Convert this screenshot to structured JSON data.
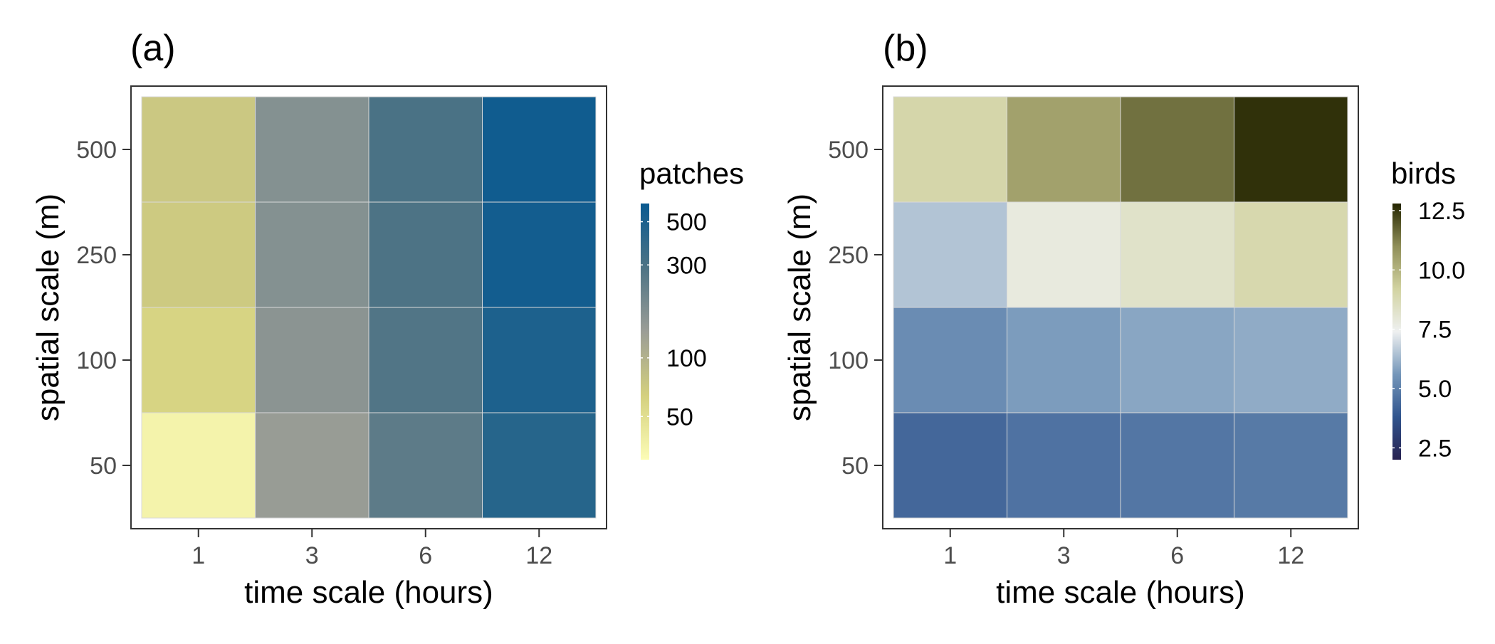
{
  "chart_data": [
    {
      "type": "heatmap",
      "panel_label": "(a)",
      "xlabel": "time scale (hours)",
      "ylabel": "spatial scale (m)",
      "x_categories": [
        "1",
        "3",
        "6",
        "12"
      ],
      "y_categories": [
        "50",
        "100",
        "250",
        "500"
      ],
      "values": [
        [
          35,
          140,
          250,
          450
        ],
        [
          60,
          160,
          280,
          500
        ],
        [
          70,
          170,
          290,
          560
        ],
        [
          72,
          170,
          300,
          580
        ]
      ],
      "legend": {
        "title": "patches",
        "scale": "log",
        "range": [
          30,
          620
        ],
        "ticks": [
          50,
          100,
          300,
          500
        ],
        "tick_labels": [
          "50",
          "100",
          "300",
          "500"
        ],
        "colors": [
          "#fcfcb6",
          "#d4d07e",
          "#9b9d96",
          "#4d7385",
          "#0a5a90"
        ]
      }
    },
    {
      "type": "heatmap",
      "panel_label": "(b)",
      "xlabel": "time scale (hours)",
      "ylabel": "spatial scale (m)",
      "x_categories": [
        "1",
        "3",
        "6",
        "12"
      ],
      "y_categories": [
        "50",
        "100",
        "250",
        "500"
      ],
      "values": [
        [
          4.3,
          4.6,
          4.7,
          4.8
        ],
        [
          5.3,
          5.7,
          5.9,
          6.0
        ],
        [
          6.5,
          7.8,
          8.3,
          8.9
        ],
        [
          9.0,
          10.5,
          11.5,
          12.6
        ]
      ],
      "legend": {
        "title": "birds",
        "scale": "linear",
        "range": [
          2.0,
          12.8
        ],
        "ticks": [
          2.5,
          5.0,
          7.5,
          10.0,
          12.5
        ],
        "tick_labels": [
          "2.5",
          "5.0",
          "7.5",
          "10.0",
          "12.5"
        ],
        "colors": [
          "#282251",
          "#31558e",
          "#7597ba",
          "#eef0f0",
          "#d2d3a1",
          "#8f8e58",
          "#242500"
        ]
      }
    }
  ]
}
